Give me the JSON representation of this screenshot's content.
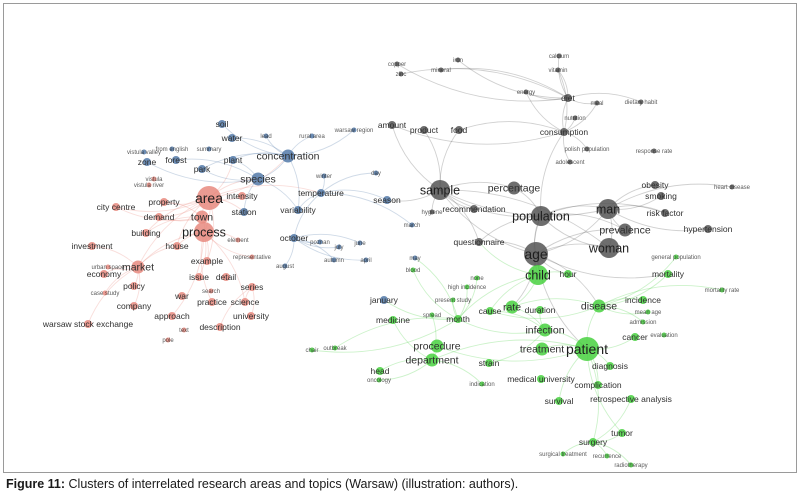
{
  "figure": {
    "caption_label": "Figure 11:",
    "caption_text": " Clusters of interrelated research areas and topics (Warsaw) (illustration: authors)."
  },
  "clusters": {
    "red": "#e8897f",
    "blue": "#5279a8",
    "grey": "#555555",
    "green": "#48d13f"
  },
  "nodes": [
    {
      "id": "area",
      "label": "area",
      "cluster": "red",
      "weight": 5
    },
    {
      "id": "process",
      "label": "process",
      "cluster": "red",
      "weight": 4
    },
    {
      "id": "town",
      "label": "town",
      "cluster": "red",
      "weight": 3
    },
    {
      "id": "market",
      "label": "market",
      "cluster": "red",
      "weight": 3
    },
    {
      "id": "property",
      "label": "property",
      "cluster": "red",
      "weight": 2
    },
    {
      "id": "building",
      "label": "building",
      "cluster": "red",
      "weight": 2
    },
    {
      "id": "demand",
      "label": "demand",
      "cluster": "red",
      "weight": 2
    },
    {
      "id": "city_centre",
      "label": "city centre",
      "cluster": "red",
      "weight": 2
    },
    {
      "id": "investment",
      "label": "investment",
      "cluster": "red",
      "weight": 2
    },
    {
      "id": "house",
      "label": "house",
      "cluster": "red",
      "weight": 2
    },
    {
      "id": "economy",
      "label": "economy",
      "cluster": "red",
      "weight": 2
    },
    {
      "id": "policy",
      "label": "policy",
      "cluster": "red",
      "weight": 2
    },
    {
      "id": "example",
      "label": "example",
      "cluster": "red",
      "weight": 2
    },
    {
      "id": "issue",
      "label": "issue",
      "cluster": "red",
      "weight": 2
    },
    {
      "id": "detail",
      "label": "detail",
      "cluster": "red",
      "weight": 2
    },
    {
      "id": "series",
      "label": "series",
      "cluster": "red",
      "weight": 2
    },
    {
      "id": "science",
      "label": "science",
      "cluster": "red",
      "weight": 2
    },
    {
      "id": "practice",
      "label": "practice",
      "cluster": "red",
      "weight": 2
    },
    {
      "id": "war",
      "label": "war",
      "cluster": "red",
      "weight": 2
    },
    {
      "id": "search",
      "label": "search",
      "cluster": "red",
      "weight": 1
    },
    {
      "id": "company",
      "label": "company",
      "cluster": "red",
      "weight": 2
    },
    {
      "id": "approach",
      "label": "approach",
      "cluster": "red",
      "weight": 2
    },
    {
      "id": "university",
      "label": "university",
      "cluster": "red",
      "weight": 2
    },
    {
      "id": "description",
      "label": "description",
      "cluster": "red",
      "weight": 2
    },
    {
      "id": "text",
      "label": "text",
      "cluster": "red",
      "weight": 1
    },
    {
      "id": "pole",
      "label": "pole",
      "cluster": "red",
      "weight": 1
    },
    {
      "id": "warsaw_stock",
      "label": "warsaw stock exchange",
      "cluster": "red",
      "weight": 2
    },
    {
      "id": "case_study",
      "label": "case study",
      "cluster": "red",
      "weight": 1
    },
    {
      "id": "element",
      "label": "element",
      "cluster": "red",
      "weight": 1
    },
    {
      "id": "urban_space",
      "label": "urban space",
      "cluster": "red",
      "weight": 1
    },
    {
      "id": "representative",
      "label": "representative",
      "cluster": "red",
      "weight": 1
    },
    {
      "id": "intensity",
      "label": "intensity",
      "cluster": "red",
      "weight": 2
    },
    {
      "id": "vistula_river",
      "label": "vistula river",
      "cluster": "red",
      "weight": 1
    },
    {
      "id": "vistula",
      "label": "vistula",
      "cluster": "red",
      "weight": 1
    },
    {
      "id": "soil",
      "label": "soil",
      "cluster": "blue",
      "weight": 2
    },
    {
      "id": "water",
      "label": "water",
      "cluster": "blue",
      "weight": 2
    },
    {
      "id": "lead",
      "label": "lead",
      "cluster": "blue",
      "weight": 1
    },
    {
      "id": "rural_area",
      "label": "rural area",
      "cluster": "blue",
      "weight": 1
    },
    {
      "id": "concentration",
      "label": "concentration",
      "cluster": "blue",
      "weight": 3
    },
    {
      "id": "plant",
      "label": "plant",
      "cluster": "blue",
      "weight": 2
    },
    {
      "id": "park",
      "label": "park",
      "cluster": "blue",
      "weight": 2
    },
    {
      "id": "forest",
      "label": "forest",
      "cluster": "blue",
      "weight": 2
    },
    {
      "id": "zone",
      "label": "zone",
      "cluster": "blue",
      "weight": 2
    },
    {
      "id": "vistula_valley",
      "label": "vistula valley",
      "cluster": "blue",
      "weight": 1
    },
    {
      "id": "species",
      "label": "species",
      "cluster": "blue",
      "weight": 3
    },
    {
      "id": "station",
      "label": "station",
      "cluster": "blue",
      "weight": 2
    },
    {
      "id": "variability",
      "label": "variability",
      "cluster": "blue",
      "weight": 2
    },
    {
      "id": "temperature",
      "label": "temperature",
      "cluster": "blue",
      "weight": 2
    },
    {
      "id": "winter",
      "label": "winter",
      "cluster": "blue",
      "weight": 1
    },
    {
      "id": "day",
      "label": "day",
      "cluster": "blue",
      "weight": 1
    },
    {
      "id": "season",
      "label": "season",
      "cluster": "blue",
      "weight": 2
    },
    {
      "id": "march",
      "label": "march",
      "cluster": "blue",
      "weight": 1
    },
    {
      "id": "october",
      "label": "october",
      "cluster": "blue",
      "weight": 2
    },
    {
      "id": "poznan",
      "label": "poznan",
      "cluster": "blue",
      "weight": 1
    },
    {
      "id": "july",
      "label": "july",
      "cluster": "blue",
      "weight": 1
    },
    {
      "id": "june",
      "label": "june",
      "cluster": "blue",
      "weight": 1
    },
    {
      "id": "april",
      "label": "april",
      "cluster": "blue",
      "weight": 1
    },
    {
      "id": "august",
      "label": "august",
      "cluster": "blue",
      "weight": 1
    },
    {
      "id": "autumn",
      "label": "autumn",
      "cluster": "blue",
      "weight": 1
    },
    {
      "id": "may",
      "label": "may",
      "cluster": "blue",
      "weight": 1
    },
    {
      "id": "january",
      "label": "january",
      "cluster": "blue",
      "weight": 2
    },
    {
      "id": "warsaw_region",
      "label": "warsaw region",
      "cluster": "blue",
      "weight": 1
    },
    {
      "id": "summary",
      "label": "summary",
      "cluster": "blue",
      "weight": 1
    },
    {
      "id": "from_en",
      "label": "from english",
      "cluster": "blue",
      "weight": 1
    },
    {
      "id": "sample",
      "label": "sample",
      "cluster": "grey",
      "weight": 4
    },
    {
      "id": "population",
      "label": "population",
      "cluster": "grey",
      "weight": 4
    },
    {
      "id": "percentage",
      "label": "percentage",
      "cluster": "grey",
      "weight": 3
    },
    {
      "id": "recommendation",
      "label": "recommendation",
      "cluster": "grey",
      "weight": 2
    },
    {
      "id": "hygiene",
      "label": "hygiene",
      "cluster": "grey",
      "weight": 1
    },
    {
      "id": "questionnaire",
      "label": "questionnaire",
      "cluster": "grey",
      "weight": 2
    },
    {
      "id": "age",
      "label": "age",
      "cluster": "grey",
      "weight": 5
    },
    {
      "id": "man",
      "label": "man",
      "cluster": "grey",
      "weight": 4
    },
    {
      "id": "woman",
      "label": "woman",
      "cluster": "grey",
      "weight": 4
    },
    {
      "id": "prevalence",
      "label": "prevalence",
      "cluster": "grey",
      "weight": 3
    },
    {
      "id": "risk_factor",
      "label": "risk factor",
      "cluster": "grey",
      "weight": 2
    },
    {
      "id": "hypertension",
      "label": "hypertension",
      "cluster": "grey",
      "weight": 2
    },
    {
      "id": "obesity",
      "label": "obesity",
      "cluster": "grey",
      "weight": 2
    },
    {
      "id": "smoking",
      "label": "smoking",
      "cluster": "grey",
      "weight": 2
    },
    {
      "id": "heart_disease",
      "label": "heart disease",
      "cluster": "grey",
      "weight": 1
    },
    {
      "id": "amount",
      "label": "amount",
      "cluster": "grey",
      "weight": 2
    },
    {
      "id": "product",
      "label": "product",
      "cluster": "grey",
      "weight": 2
    },
    {
      "id": "food",
      "label": "food",
      "cluster": "grey",
      "weight": 2
    },
    {
      "id": "consumption",
      "label": "consumption",
      "cluster": "grey",
      "weight": 2
    },
    {
      "id": "nutrition",
      "label": "nutrition",
      "cluster": "grey",
      "weight": 1
    },
    {
      "id": "polish_population",
      "label": "polish population",
      "cluster": "grey",
      "weight": 1
    },
    {
      "id": "adolescent",
      "label": "adolescent",
      "cluster": "grey",
      "weight": 1
    },
    {
      "id": "response_rate",
      "label": "response rate",
      "cluster": "grey",
      "weight": 1
    },
    {
      "id": "iron",
      "label": "iron",
      "cluster": "grey",
      "weight": 1
    },
    {
      "id": "mineral",
      "label": "mineral",
      "cluster": "grey",
      "weight": 1
    },
    {
      "id": "zinc",
      "label": "zinc",
      "cluster": "grey",
      "weight": 1
    },
    {
      "id": "copper",
      "label": "copper",
      "cluster": "grey",
      "weight": 1
    },
    {
      "id": "calcium",
      "label": "calcium",
      "cluster": "grey",
      "weight": 1
    },
    {
      "id": "vitamin",
      "label": "vitamin",
      "cluster": "grey",
      "weight": 1
    },
    {
      "id": "energy",
      "label": "energy",
      "cluster": "grey",
      "weight": 1
    },
    {
      "id": "diet",
      "label": "diet",
      "cluster": "grey",
      "weight": 2
    },
    {
      "id": "meal",
      "label": "meal",
      "cluster": "grey",
      "weight": 1
    },
    {
      "id": "dietary_habit",
      "label": "dietary habit",
      "cluster": "grey",
      "weight": 1
    },
    {
      "id": "child",
      "label": "child",
      "cluster": "green",
      "weight": 4
    },
    {
      "id": "hour",
      "label": "hour",
      "cluster": "green",
      "weight": 2
    },
    {
      "id": "mortality",
      "label": "mortality",
      "cluster": "green",
      "weight": 2
    },
    {
      "id": "general_population",
      "label": "general population",
      "cluster": "green",
      "weight": 1
    },
    {
      "id": "mortality_rate",
      "label": "mortality rate",
      "cluster": "green",
      "weight": 1
    },
    {
      "id": "disease",
      "label": "disease",
      "cluster": "green",
      "weight": 3
    },
    {
      "id": "incidence",
      "label": "incidence",
      "cluster": "green",
      "weight": 2
    },
    {
      "id": "rate",
      "label": "rate",
      "cluster": "green",
      "weight": 3
    },
    {
      "id": "cause",
      "label": "cause",
      "cluster": "green",
      "weight": 2
    },
    {
      "id": "duration",
      "label": "duration",
      "cluster": "green",
      "weight": 2
    },
    {
      "id": "month",
      "label": "month",
      "cluster": "green",
      "weight": 2
    },
    {
      "id": "infection",
      "label": "infection",
      "cluster": "green",
      "weight": 3
    },
    {
      "id": "treatment",
      "label": "treatment",
      "cluster": "green",
      "weight": 3
    },
    {
      "id": "patient",
      "label": "patient",
      "cluster": "green",
      "weight": 5
    },
    {
      "id": "procedure",
      "label": "procedure",
      "cluster": "green",
      "weight": 3
    },
    {
      "id": "department",
      "label": "department",
      "cluster": "green",
      "weight": 3
    },
    {
      "id": "strain",
      "label": "strain",
      "cluster": "green",
      "weight": 2
    },
    {
      "id": "diagnosis",
      "label": "diagnosis",
      "cluster": "green",
      "weight": 2
    },
    {
      "id": "cancer",
      "label": "cancer",
      "cluster": "green",
      "weight": 2
    },
    {
      "id": "admission",
      "label": "admission",
      "cluster": "green",
      "weight": 1
    },
    {
      "id": "mean_age",
      "label": "mean age",
      "cluster": "green",
      "weight": 1
    },
    {
      "id": "complication",
      "label": "complication",
      "cluster": "green",
      "weight": 2
    },
    {
      "id": "retrospective",
      "label": "retrospective analysis",
      "cluster": "green",
      "weight": 2
    },
    {
      "id": "survival",
      "label": "survival",
      "cluster": "green",
      "weight": 2
    },
    {
      "id": "medical_university",
      "label": "medical university",
      "cluster": "green",
      "weight": 2
    },
    {
      "id": "indication",
      "label": "indication",
      "cluster": "green",
      "weight": 1
    },
    {
      "id": "surgery",
      "label": "surgery",
      "cluster": "green",
      "weight": 2
    },
    {
      "id": "tumor",
      "label": "tumor",
      "cluster": "green",
      "weight": 2
    },
    {
      "id": "recurrence",
      "label": "recurrence",
      "cluster": "green",
      "weight": 1
    },
    {
      "id": "surgical_treatment",
      "label": "surgical treatment",
      "cluster": "green",
      "weight": 1
    },
    {
      "id": "radiotherapy",
      "label": "radiotherapy",
      "cluster": "green",
      "weight": 1
    },
    {
      "id": "spread",
      "label": "spread",
      "cluster": "green",
      "weight": 1
    },
    {
      "id": "medicine",
      "label": "medicine",
      "cluster": "green",
      "weight": 2
    },
    {
      "id": "head",
      "label": "head",
      "cluster": "green",
      "weight": 2
    },
    {
      "id": "oncology",
      "label": "oncology",
      "cluster": "green",
      "weight": 1
    },
    {
      "id": "high_incidence",
      "label": "high incidence",
      "cluster": "green",
      "weight": 1
    },
    {
      "id": "present_study",
      "label": "present study",
      "cluster": "green",
      "weight": 1
    },
    {
      "id": "none",
      "label": "none",
      "cluster": "green",
      "weight": 1
    },
    {
      "id": "blood",
      "label": "blood",
      "cluster": "green",
      "weight": 1
    },
    {
      "id": "chair",
      "label": "chair",
      "cluster": "green",
      "weight": 1
    },
    {
      "id": "outbreak",
      "label": "outbreak",
      "cluster": "green",
      "weight": 1
    },
    {
      "id": "evaluation",
      "label": "evaluation",
      "cluster": "green",
      "weight": 1
    }
  ]
}
